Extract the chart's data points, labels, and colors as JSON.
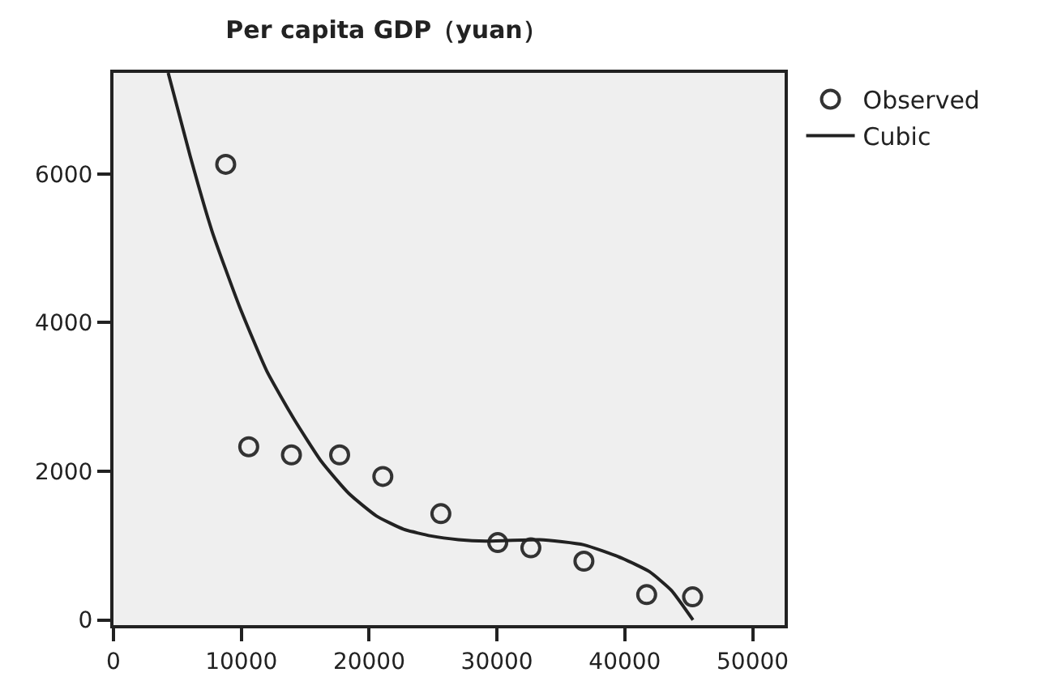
{
  "chart_data": {
    "type": "scatter",
    "title": "Per capita GDP（yuan）",
    "xlim": [
      0,
      52500
    ],
    "xticks": [
      0,
      10000,
      20000,
      30000,
      40000,
      50000
    ],
    "ylim": [
      -70,
      7360
    ],
    "yticks": [
      0,
      2000,
      4000,
      6000
    ],
    "grid": false,
    "legend": "top right",
    "series": [
      {
        "name": "Observed",
        "marker": "circle",
        "color": "#333333",
        "x": [
          8780,
          10580,
          13920,
          17690,
          21070,
          25610,
          30060,
          32650,
          36800,
          41710,
          45300
        ],
        "values": [
          6130,
          2330,
          2220,
          2220,
          1930,
          1430,
          1040,
          970,
          790,
          340,
          310
        ]
      },
      {
        "name": "Cubic",
        "type": "line",
        "marker": "none",
        "color": "#222222",
        "x": [
          4280,
          6000,
          7710,
          9850,
          11990,
          14130,
          16270,
          18420,
          20560,
          22700,
          24840,
          26980,
          29120,
          33330,
          36800,
          39780,
          41920,
          43630,
          45330
        ],
        "values": [
          7360,
          6240,
          5230,
          4220,
          3350,
          2700,
          2130,
          1700,
          1400,
          1220,
          1130,
          1080,
          1060,
          1080,
          1010,
          830,
          650,
          400,
          0
        ]
      }
    ]
  }
}
